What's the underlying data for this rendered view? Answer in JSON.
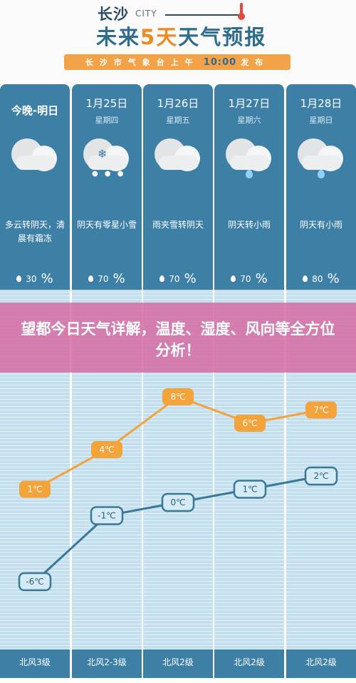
{
  "header": {
    "city": "长沙",
    "city_en": "CITY",
    "title_a": "未来",
    "title_b": "5天",
    "title_c": "天气预报",
    "banner_a": "长沙市气象台上午",
    "banner_time": "10:00",
    "banner_b": "发布"
  },
  "days": [
    {
      "date": "今晚-明日",
      "week": "",
      "icon": "cloudy-icon",
      "desc": "多云转阴天，清晨有霜冻",
      "precip": "30",
      "pct": "%"
    },
    {
      "date": "1月25日",
      "week": "星期四",
      "icon": "snow-icon",
      "desc": "阴天有零星小雪",
      "precip": "70",
      "pct": "%"
    },
    {
      "date": "1月26日",
      "week": "星期五",
      "icon": "cloudy-icon",
      "desc": "雨夹雪转阴天",
      "precip": "70",
      "pct": "%"
    },
    {
      "date": "1月27日",
      "week": "星期六",
      "icon": "rain-icon",
      "desc": "阴天转小雨",
      "precip": "70",
      "pct": "%"
    },
    {
      "date": "1月28日",
      "week": "星期日",
      "icon": "rain-icon",
      "desc": "阴天有小雨",
      "precip": "80",
      "pct": "%"
    }
  ],
  "overlay": {
    "text": "望都今日天气详解，温度、湿度、风向等全方位分析！"
  },
  "chart_data": {
    "type": "line",
    "x": [
      "今晚-明日",
      "1月25日",
      "1月26日",
      "1月27日",
      "1月28日"
    ],
    "series": [
      {
        "values": [
          1,
          4,
          8,
          6,
          7
        ],
        "labels": [
          "1℃",
          "4℃",
          "8℃",
          "6℃",
          "7℃"
        ],
        "color": "#f2a33a"
      },
      {
        "values": [
          -6,
          -1,
          0,
          1,
          2
        ],
        "labels": [
          "-6℃",
          "-1℃",
          "0℃",
          "1℃",
          "2℃"
        ],
        "color": "#3a7898"
      }
    ]
  },
  "wind": [
    "北风3级",
    "北风2-3级",
    "北风2级",
    "北风2级",
    "北风2级"
  ]
}
